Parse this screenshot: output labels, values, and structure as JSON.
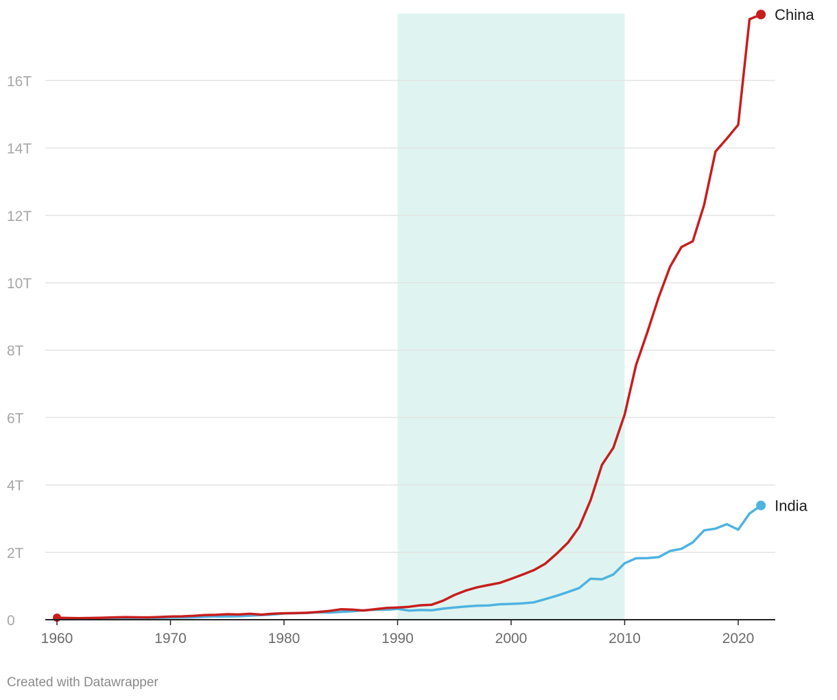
{
  "chart_data": {
    "type": "line",
    "title": "",
    "xlabel": "",
    "ylabel": "",
    "xlim": [
      1960,
      2023
    ],
    "ylim": [
      0,
      18000000000000
    ],
    "y_ticks": [
      0,
      2000000000000,
      4000000000000,
      6000000000000,
      8000000000000,
      10000000000000,
      12000000000000,
      14000000000000,
      16000000000000
    ],
    "y_tick_labels": [
      "0",
      "2T",
      "4T",
      "6T",
      "8T",
      "10T",
      "12T",
      "14T",
      "16T"
    ],
    "x_ticks": [
      1960,
      1970,
      1980,
      1990,
      2000,
      2010,
      2020
    ],
    "x_tick_labels": [
      "1960",
      "1970",
      "1980",
      "1990",
      "2000",
      "2010",
      "2020"
    ],
    "grid": true,
    "highlight_band": {
      "x_start": 1990,
      "x_end": 2010,
      "color": "#dff4f0"
    },
    "x": [
      1960,
      1961,
      1962,
      1963,
      1964,
      1965,
      1966,
      1967,
      1968,
      1969,
      1970,
      1971,
      1972,
      1973,
      1974,
      1975,
      1976,
      1977,
      1978,
      1979,
      1980,
      1981,
      1982,
      1983,
      1984,
      1985,
      1986,
      1987,
      1988,
      1989,
      1990,
      1991,
      1992,
      1993,
      1994,
      1995,
      1996,
      1997,
      1998,
      1999,
      2000,
      2001,
      2002,
      2003,
      2004,
      2005,
      2006,
      2007,
      2008,
      2009,
      2010,
      2011,
      2012,
      2013,
      2014,
      2015,
      2016,
      2017,
      2018,
      2019,
      2020,
      2021,
      2022
    ],
    "series": [
      {
        "name": "China",
        "color": "#c71e1d",
        "values": [
          60000000000.0,
          50000000000.0,
          47000000000.0,
          50000000000.0,
          59000000000.0,
          70000000000.0,
          76000000000.0,
          72000000000.0,
          70000000000.0,
          79000000000.0,
          93000000000.0,
          100000000000.0,
          114000000000.0,
          139000000000.0,
          144000000000.0,
          163000000000.0,
          154000000000.0,
          175000000000.0,
          150000000000.0,
          180000000000.0,
          191000000000.0,
          196000000000.0,
          205000000000.0,
          231000000000.0,
          260000000000.0,
          310000000000.0,
          300000000000.0,
          273000000000.0,
          312000000000.0,
          348000000000.0,
          361000000000.0,
          383000000000.0,
          427000000000.0,
          445000000000.0,
          564000000000.0,
          734000000000.0,
          864000000000.0,
          962000000000.0,
          1029000000000.0,
          1094000000000.0,
          1211000000000.0,
          1339000000000.0,
          1471000000000.0,
          1660000000000.0,
          1955000000000.0,
          2286000000000.0,
          2752000000000.0,
          3550000000000.0,
          4594000000000.0,
          5102000000000.0,
          6087000000000.0,
          7552000000000.0,
          8532000000000.0,
          9570000000000.0,
          10476000000000.0,
          11062000000000.0,
          11233000000000.0,
          12310000000000.0,
          13895000000000.0,
          14280000000000.0,
          14688000000000.0,
          17820000000000.0,
          17960000000000.0
        ]
      },
      {
        "name": "India",
        "color": "#4eb3e0",
        "values": [
          37000000000.0,
          39000000000.0,
          42000000000.0,
          49000000000.0,
          56000000000.0,
          59000000000.0,
          46000000000.0,
          50000000000.0,
          53000000000.0,
          58000000000.0,
          63000000000.0,
          67000000000.0,
          71000000000.0,
          85000000000.0,
          99000000000.0,
          98000000000.0,
          102000000000.0,
          121000000000.0,
          137000000000.0,
          153000000000.0,
          186000000000.0,
          193000000000.0,
          201000000000.0,
          218000000000.0,
          212000000000.0,
          232000000000.0,
          248000000000.0,
          279000000000.0,
          296000000000.0,
          296000000000.0,
          321000000000.0,
          270000000000.0,
          288000000000.0,
          279000000000.0,
          327000000000.0,
          360000000000.0,
          393000000000.0,
          415000000000.0,
          421000000000.0,
          458000000000.0,
          468000000000.0,
          485000000000.0,
          515000000000.0,
          608000000000.0,
          709000000000.0,
          820000000000.0,
          940000000000.0,
          1217000000000.0,
          1199000000000.0,
          1342000000000.0,
          1676000000000.0,
          1823000000000.0,
          1828000000000.0,
          1857000000000.0,
          2039000000000.0,
          2104000000000.0,
          2295000000000.0,
          2651000000000.0,
          2703000000000.0,
          2836000000000.0,
          2672000000000.0,
          3150000000000.0,
          3390000000000.0
        ]
      }
    ]
  },
  "footer": {
    "credit": "Created with Datawrapper"
  }
}
